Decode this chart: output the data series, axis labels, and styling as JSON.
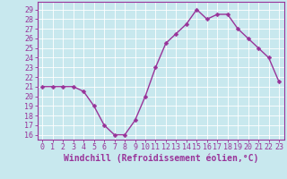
{
  "x": [
    0,
    1,
    2,
    3,
    4,
    5,
    6,
    7,
    8,
    9,
    10,
    11,
    12,
    13,
    14,
    15,
    16,
    17,
    18,
    19,
    20,
    21,
    22,
    23
  ],
  "y": [
    21,
    21,
    21,
    21,
    20.5,
    19,
    17,
    16,
    16,
    17.5,
    20,
    23,
    25.5,
    26.5,
    27.5,
    29,
    28,
    28.5,
    28.5,
    27,
    26,
    25,
    24,
    21.5
  ],
  "line_color": "#993399",
  "marker": "D",
  "markersize": 2.5,
  "linewidth": 1.0,
  "background_color": "#c8e8ee",
  "grid_color": "#ffffff",
  "xlabel": "Windchill (Refroidissement éolien,°C)",
  "xlabel_fontsize": 7,
  "xlabel_color": "#993399",
  "xtick_labels": [
    "0",
    "1",
    "2",
    "3",
    "4",
    "5",
    "6",
    "7",
    "8",
    "9",
    "10",
    "11",
    "12",
    "13",
    "14",
    "15",
    "16",
    "17",
    "18",
    "19",
    "20",
    "21",
    "22",
    "23"
  ],
  "ytick_min": 16,
  "ytick_max": 29,
  "ytick_step": 1,
  "ylim": [
    15.5,
    29.8
  ],
  "xlim": [
    -0.5,
    23.5
  ],
  "tick_fontsize": 6,
  "tick_label_color": "#993399",
  "spine_color": "#993399"
}
